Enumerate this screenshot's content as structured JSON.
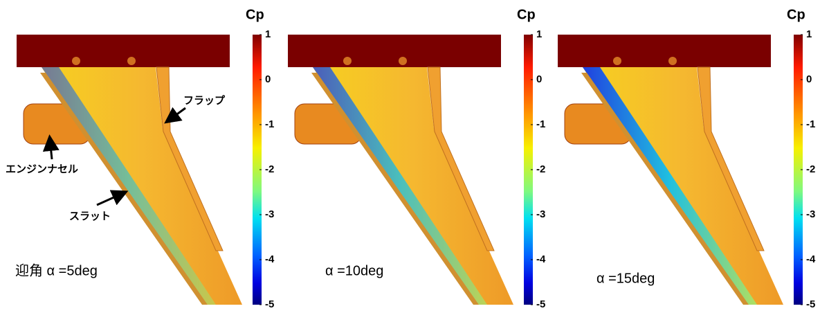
{
  "panels": [
    {
      "caption": "迎角 α =5deg",
      "colorbar": {
        "title": "Cp",
        "ticks": [
          1,
          0,
          -1,
          -2,
          -3,
          -4,
          -5
        ]
      },
      "annotations": [
        "フラップ",
        "エンジンナセル",
        "スラット"
      ]
    },
    {
      "caption": "α =10deg",
      "colorbar": {
        "title": "Cp",
        "ticks": [
          1,
          0,
          -1,
          -2,
          -3,
          -4,
          -5
        ]
      }
    },
    {
      "caption": "α =15deg",
      "colorbar": {
        "title": "Cp",
        "ticks": [
          1,
          0,
          -1,
          -2,
          -3,
          -4,
          -5
        ]
      }
    }
  ]
}
